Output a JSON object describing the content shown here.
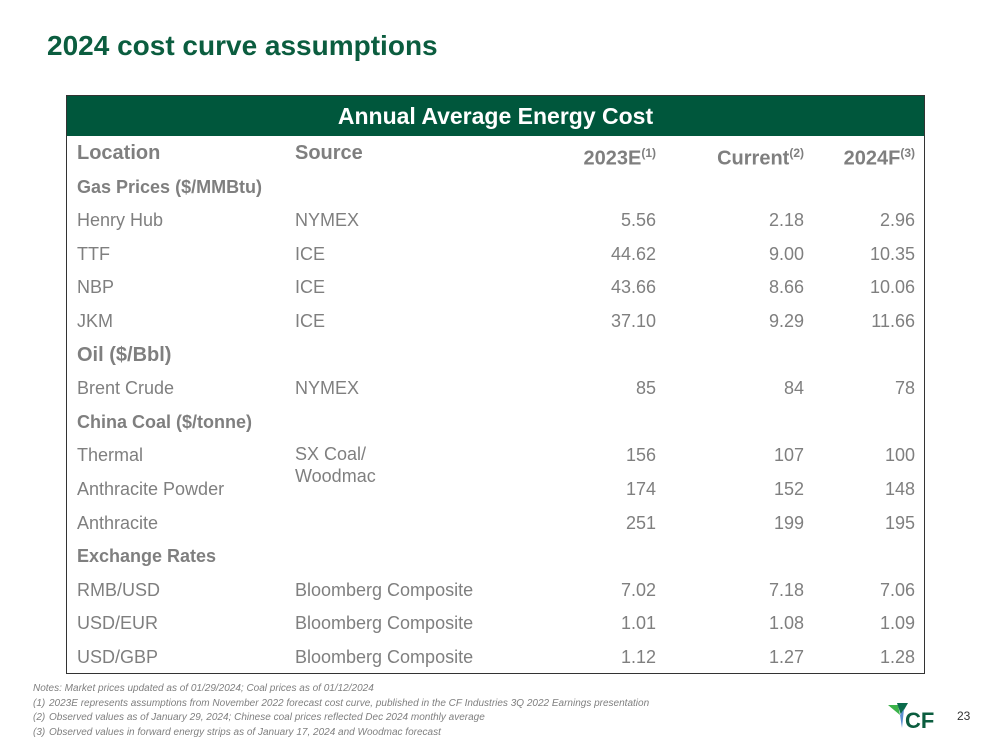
{
  "title": "2024 cost curve assumptions",
  "table": {
    "caption": "Annual Average Energy Cost",
    "headers": {
      "location": "Location",
      "source": "Source",
      "c1": "2023E",
      "c1_note": "(1)",
      "c2": "Current",
      "c2_note": "(2)",
      "c3": "2024F",
      "c3_note": "(3)"
    },
    "rows": [
      {
        "type": "section",
        "label": "Gas Prices ($/MMBtu)"
      },
      {
        "loc": "Henry Hub",
        "src": "NYMEX",
        "v1": "5.56",
        "v2": "2.18",
        "v3": "2.96"
      },
      {
        "loc": "TTF",
        "src": "ICE",
        "v1": "44.62",
        "v2": "9.00",
        "v3": "10.35"
      },
      {
        "loc": "NBP",
        "src": "ICE",
        "v1": "43.66",
        "v2": "8.66",
        "v3": "10.06"
      },
      {
        "loc": "JKM",
        "src": "ICE",
        "v1": "37.10",
        "v2": "9.29",
        "v3": "11.66"
      },
      {
        "type": "section-big",
        "label": "Oil ($/Bbl)"
      },
      {
        "loc": "Brent Crude",
        "src": "NYMEX",
        "v1": "85",
        "v2": "84",
        "v3": "78"
      },
      {
        "type": "section",
        "label": "China Coal ($/tonne)"
      },
      {
        "loc": "Thermal",
        "src": "",
        "v1": "156",
        "v2": "107",
        "v3": "100"
      },
      {
        "loc": "Anthracite Powder",
        "src": "",
        "v1": "174",
        "v2": "152",
        "v3": "148"
      },
      {
        "loc": "Anthracite",
        "src": "",
        "v1": "251",
        "v2": "199",
        "v3": "195"
      },
      {
        "type": "section",
        "label": "Exchange Rates"
      },
      {
        "loc": "RMB/USD",
        "src": "Bloomberg Composite",
        "v1": "7.02",
        "v2": "7.18",
        "v3": "7.06"
      },
      {
        "loc": "USD/EUR",
        "src": "Bloomberg Composite",
        "v1": "1.01",
        "v2": "1.08",
        "v3": "1.09"
      },
      {
        "loc": "USD/GBP",
        "src": "Bloomberg Composite",
        "v1": "1.12",
        "v2": "1.27",
        "v3": "1.28"
      }
    ],
    "coal_source_line1": "SX Coal/",
    "coal_source_line2": "Woodmac"
  },
  "notes": {
    "main": "Notes: Market prices updated as of 01/29/2024; Coal prices as of 01/12/2024",
    "items": [
      {
        "n": "(1)",
        "t": "2023E represents assumptions from November 2022 forecast cost curve, published in the CF Industries 3Q 2022 Earnings presentation"
      },
      {
        "n": "(2)",
        "t": "Observed values as of January 29, 2024; Chinese coal prices reflected Dec 2024 monthly average"
      },
      {
        "n": "(3)",
        "t": "Observed values in forward energy strips as of January 17, 2024 and Woodmac forecast"
      }
    ]
  },
  "logo_text": "CF",
  "page_number": "23"
}
